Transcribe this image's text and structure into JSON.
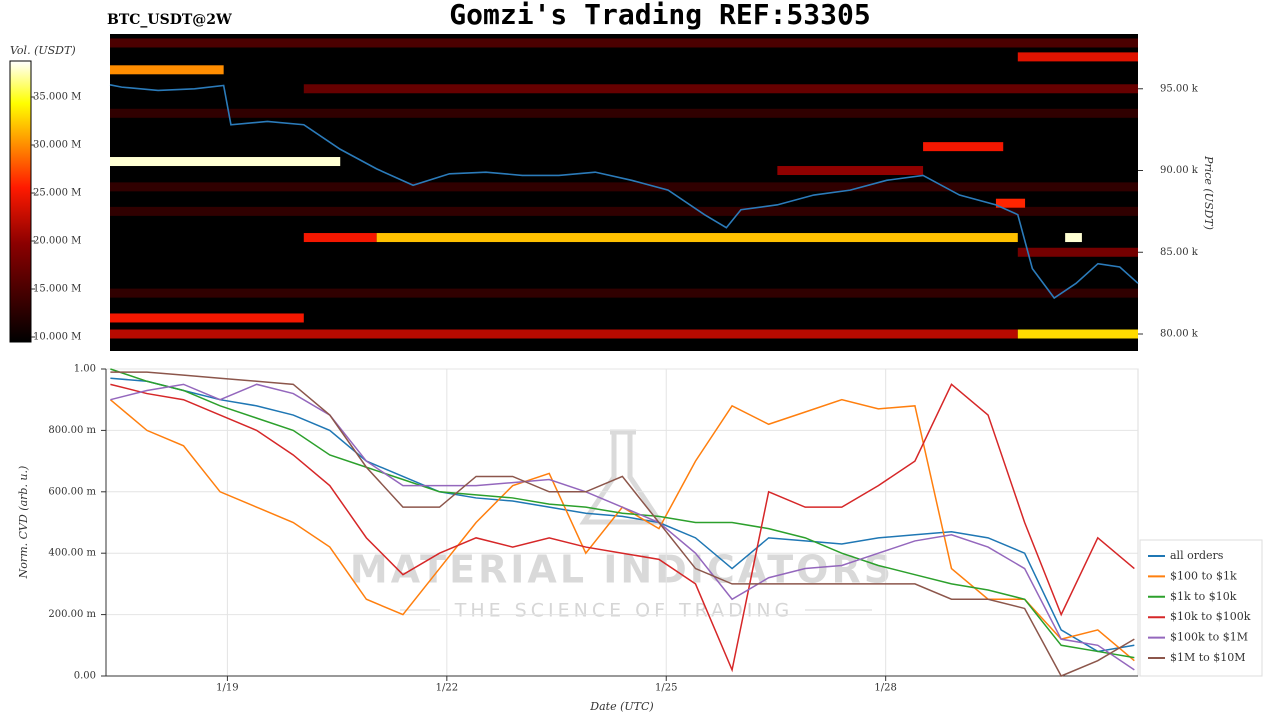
{
  "header": {
    "title": "Gomzi's Trading REF:53305"
  },
  "watermark": {
    "title": "MATERIAL INDICATORS",
    "subtitle": "THE SCIENCE OF TRADING"
  },
  "chart_data": [
    {
      "type": "heatmap",
      "symbol": "BTC_USDT@2W",
      "ylabel": "Price (USDT)",
      "xlim": [
        17.34,
        31.45
      ],
      "ylim": [
        78960,
        98350
      ],
      "yticks": [
        {
          "value": 80000,
          "label": "80.00 k"
        },
        {
          "value": 85000,
          "label": "85.00 k"
        },
        {
          "value": 90000,
          "label": "90.00 k"
        },
        {
          "value": 95000,
          "label": "95.00 k"
        }
      ],
      "colorbar": {
        "label": "Vol. (USDT)",
        "lim": [
          9480000,
          38750000
        ],
        "ticks": [
          {
            "value": 10000000,
            "label": "10.000 M"
          },
          {
            "value": 15000000,
            "label": "15.000 M"
          },
          {
            "value": 20000000,
            "label": "20.000 M"
          },
          {
            "value": 25000000,
            "label": "25.000 M"
          },
          {
            "value": 30000000,
            "label": "30.000 M"
          },
          {
            "value": 35000000,
            "label": "35.000 M"
          }
        ]
      },
      "levels": [
        {
          "price": 97800,
          "x0": 17.34,
          "x1": 31.45,
          "volume": 15000000
        },
        {
          "price": 93500,
          "x0": 17.34,
          "x1": 31.45,
          "volume": 13000000
        },
        {
          "price": 89000,
          "x0": 17.34,
          "x1": 31.45,
          "volume": 13000000
        },
        {
          "price": 87500,
          "x0": 17.34,
          "x1": 31.45,
          "volume": 13000000
        },
        {
          "price": 82500,
          "x0": 17.34,
          "x1": 31.45,
          "volume": 13000000
        },
        {
          "price": 95000,
          "x0": 20.0,
          "x1": 31.45,
          "volume": 17000000
        },
        {
          "price": 96950,
          "x0": 29.8,
          "x1": 31.45,
          "volume": 24000000
        },
        {
          "price": 96160,
          "x0": 17.34,
          "x1": 18.9,
          "volume": 30000000
        },
        {
          "price": 90550,
          "x0": 17.34,
          "x1": 20.5,
          "volume": 38000000
        },
        {
          "price": 91460,
          "x0": 28.5,
          "x1": 29.6,
          "volume": 25000000
        },
        {
          "price": 90000,
          "x0": 26.5,
          "x1": 28.5,
          "volume": 20000000
        },
        {
          "price": 88000,
          "x0": 29.5,
          "x1": 29.9,
          "volume": 26000000
        },
        {
          "price": 85900,
          "x0": 20.0,
          "x1": 21.0,
          "volume": 25000000
        },
        {
          "price": 85900,
          "x0": 21.0,
          "x1": 29.8,
          "volume": 32000000
        },
        {
          "price": 85900,
          "x0": 30.45,
          "x1": 30.68,
          "volume": 38000000
        },
        {
          "price": 85000,
          "x0": 29.8,
          "x1": 31.45,
          "volume": 18000000
        },
        {
          "price": 80980,
          "x0": 17.34,
          "x1": 20.0,
          "volume": 25000000
        },
        {
          "price": 80000,
          "x0": 17.34,
          "x1": 29.8,
          "volume": 22000000
        },
        {
          "price": 80000,
          "x0": 29.8,
          "x1": 31.45,
          "volume": 33000000
        }
      ],
      "price": {
        "color": "#2b7bba",
        "x": [
          17.34,
          17.5,
          18,
          18.5,
          18.9,
          19.0,
          19.5,
          20.0,
          20.5,
          21.0,
          21.5,
          22.0,
          22.5,
          23,
          23.5,
          24,
          24.5,
          25,
          25.5,
          25.8,
          26,
          26.5,
          27,
          27.5,
          28,
          28.5,
          29,
          29.5,
          29.8,
          30.0,
          30.3,
          30.6,
          30.9,
          31.2,
          31.45
        ],
        "values": [
          95240,
          95100,
          94900,
          95000,
          95200,
          92800,
          93000,
          92800,
          91300,
          90100,
          89100,
          89800,
          89900,
          89700,
          89700,
          89900,
          89400,
          88800,
          87300,
          86500,
          87600,
          87900,
          88500,
          88800,
          89400,
          89700,
          88500,
          87900,
          87300,
          84000,
          82200,
          83100,
          84300,
          84100,
          83100
        ]
      }
    },
    {
      "type": "line",
      "xlabel": "Date (UTC)",
      "ylabel": "Norm. CVD (arb. u.)",
      "legend": "right",
      "grid": true,
      "xlim": [
        17.34,
        31.45
      ],
      "xticks": [
        {
          "value": 19,
          "label": "1/19"
        },
        {
          "value": 22,
          "label": "1/22"
        },
        {
          "value": 25,
          "label": "1/25"
        },
        {
          "value": 28,
          "label": "1/28"
        }
      ],
      "ylim": [
        0,
        1
      ],
      "yticks": [
        {
          "value": 0,
          "label": "0.00"
        },
        {
          "value": 0.2,
          "label": "200.00 m"
        },
        {
          "value": 0.4,
          "label": "400.00 m"
        },
        {
          "value": 0.6,
          "label": "600.00 m"
        },
        {
          "value": 0.8,
          "label": "800.00 m"
        },
        {
          "value": 1,
          "label": "1.00"
        }
      ],
      "x": [
        17.4,
        17.9,
        18.4,
        18.9,
        19.4,
        19.9,
        20.4,
        20.9,
        21.4,
        21.9,
        22.4,
        22.9,
        23.4,
        23.9,
        24.4,
        24.9,
        25.4,
        25.9,
        26.4,
        26.9,
        27.4,
        27.9,
        28.4,
        28.9,
        29.4,
        29.9,
        30.4,
        30.9,
        31.4
      ],
      "series": [
        {
          "name": "all orders",
          "color": "#1f77b4",
          "values": [
            0.97,
            0.96,
            0.93,
            0.9,
            0.88,
            0.85,
            0.8,
            0.7,
            0.65,
            0.6,
            0.58,
            0.57,
            0.55,
            0.53,
            0.52,
            0.5,
            0.45,
            0.35,
            0.45,
            0.44,
            0.43,
            0.45,
            0.46,
            0.47,
            0.45,
            0.4,
            0.15,
            0.08,
            0.1
          ]
        },
        {
          "name": "$100 to $1k",
          "color": "#ff7f0e",
          "values": [
            0.9,
            0.8,
            0.75,
            0.6,
            0.55,
            0.5,
            0.42,
            0.25,
            0.2,
            0.35,
            0.5,
            0.62,
            0.66,
            0.4,
            0.55,
            0.48,
            0.7,
            0.88,
            0.82,
            0.86,
            0.9,
            0.87,
            0.88,
            0.35,
            0.25,
            0.25,
            0.12,
            0.15,
            0.05
          ]
        },
        {
          "name": "$1k to $10k",
          "color": "#2ca02c",
          "values": [
            1.0,
            0.96,
            0.93,
            0.88,
            0.84,
            0.8,
            0.72,
            0.68,
            0.64,
            0.6,
            0.59,
            0.58,
            0.56,
            0.55,
            0.53,
            0.52,
            0.5,
            0.5,
            0.48,
            0.45,
            0.4,
            0.36,
            0.33,
            0.3,
            0.28,
            0.25,
            0.1,
            0.08,
            0.06
          ]
        },
        {
          "name": "$10k to $100k",
          "color": "#d62728",
          "values": [
            0.95,
            0.92,
            0.9,
            0.85,
            0.8,
            0.72,
            0.62,
            0.45,
            0.33,
            0.4,
            0.45,
            0.42,
            0.45,
            0.42,
            0.4,
            0.38,
            0.3,
            0.02,
            0.6,
            0.55,
            0.55,
            0.62,
            0.7,
            0.95,
            0.85,
            0.5,
            0.2,
            0.45,
            0.35
          ]
        },
        {
          "name": "$100k to $1M",
          "color": "#9467bd",
          "values": [
            0.9,
            0.93,
            0.95,
            0.9,
            0.95,
            0.92,
            0.85,
            0.7,
            0.62,
            0.62,
            0.62,
            0.63,
            0.64,
            0.6,
            0.55,
            0.5,
            0.4,
            0.25,
            0.32,
            0.35,
            0.36,
            0.4,
            0.44,
            0.46,
            0.42,
            0.35,
            0.12,
            0.1,
            0.02
          ]
        },
        {
          "name": "$1M to $10M",
          "color": "#8c564b",
          "values": [
            0.99,
            0.99,
            0.98,
            0.97,
            0.96,
            0.95,
            0.85,
            0.68,
            0.55,
            0.55,
            0.65,
            0.65,
            0.6,
            0.6,
            0.65,
            0.5,
            0.35,
            0.3,
            0.3,
            0.3,
            0.3,
            0.3,
            0.3,
            0.25,
            0.25,
            0.22,
            0.0,
            0.05,
            0.12
          ]
        }
      ]
    }
  ]
}
